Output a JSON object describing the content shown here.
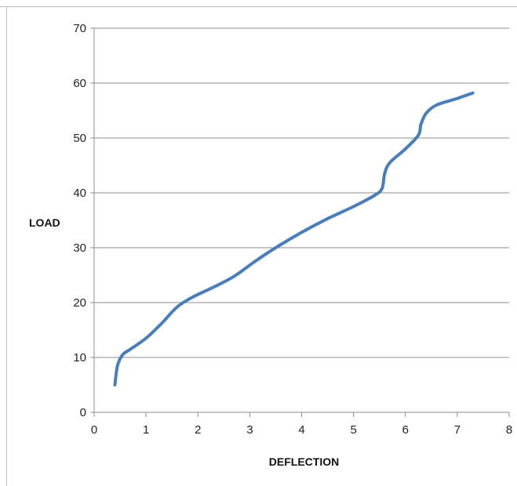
{
  "chart_data": {
    "type": "line",
    "title": "",
    "xlabel": "DEFLECTION",
    "ylabel": "LOAD",
    "xlim": [
      0,
      8
    ],
    "ylim": [
      0,
      70
    ],
    "x_ticks": [
      0,
      1,
      2,
      3,
      4,
      5,
      6,
      7,
      8
    ],
    "y_ticks": [
      0,
      10,
      20,
      30,
      40,
      50,
      60,
      70
    ],
    "grid": "horizontal",
    "legend": "none",
    "series": [
      {
        "color": "#4a7ebb",
        "points": [
          [
            0.4,
            5
          ],
          [
            0.45,
            8.5
          ],
          [
            0.55,
            10.5
          ],
          [
            0.7,
            11.5
          ],
          [
            1.0,
            13.5
          ],
          [
            1.3,
            16.2
          ],
          [
            1.6,
            19.2
          ],
          [
            1.9,
            21.0
          ],
          [
            2.3,
            22.8
          ],
          [
            2.7,
            24.8
          ],
          [
            3.1,
            27.5
          ],
          [
            3.5,
            30.0
          ],
          [
            4.0,
            32.8
          ],
          [
            4.5,
            35.3
          ],
          [
            5.0,
            37.5
          ],
          [
            5.4,
            39.5
          ],
          [
            5.55,
            40.8
          ],
          [
            5.6,
            43.5
          ],
          [
            5.7,
            45.5
          ],
          [
            6.0,
            48.0
          ],
          [
            6.25,
            50.5
          ],
          [
            6.3,
            52.5
          ],
          [
            6.4,
            54.5
          ],
          [
            6.6,
            56.0
          ],
          [
            7.0,
            57.2
          ],
          [
            7.3,
            58.2
          ]
        ]
      }
    ]
  }
}
